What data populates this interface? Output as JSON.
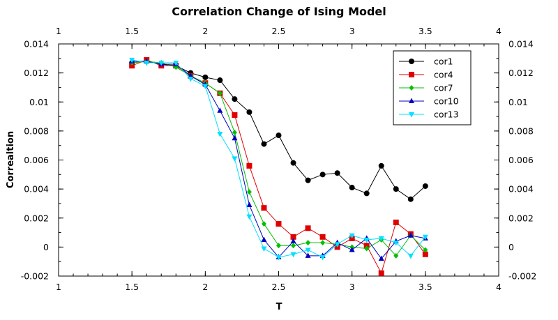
{
  "chart_data": {
    "type": "line",
    "title": "Correlation Change of Ising Model",
    "xlabel": "T",
    "ylabel": "Correaltion",
    "xlim": [
      1,
      4
    ],
    "ylim": [
      -0.002,
      0.014
    ],
    "x_ticks": [
      "1",
      "1.5",
      "2",
      "2.5",
      "3",
      "3.5",
      "4"
    ],
    "x_tick_values": [
      1,
      1.5,
      2,
      2.5,
      3,
      3.5,
      4
    ],
    "y_ticks": [
      "-0.002",
      "0",
      "0.002",
      "0.004",
      "0.006",
      "0.008",
      "0.01",
      "0.012",
      "0.014"
    ],
    "y_tick_values": [
      -0.002,
      0,
      0.002,
      0.004,
      0.006,
      0.008,
      0.01,
      0.012,
      0.014
    ],
    "grid": false,
    "legend_position": "top-right",
    "x": [
      1.5,
      1.6,
      1.7,
      1.8,
      1.9,
      2.0,
      2.1,
      2.2,
      2.3,
      2.4,
      2.5,
      2.6,
      2.7,
      2.8,
      2.9,
      3.0,
      3.1,
      3.2,
      3.3,
      3.4,
      3.5
    ],
    "series": [
      {
        "name": "cor1",
        "color": "#000000",
        "marker": "circle",
        "values": [
          0.0127,
          0.0128,
          0.0126,
          0.0125,
          0.012,
          0.0117,
          0.0115,
          0.0102,
          0.0093,
          0.0071,
          0.0077,
          0.0058,
          0.0046,
          0.005,
          0.0051,
          0.0041,
          0.0037,
          0.0056,
          0.004,
          0.0033,
          0.0042
        ]
      },
      {
        "name": "cor4",
        "color": "#e00000",
        "marker": "square",
        "values": [
          0.0125,
          0.0129,
          0.0125,
          0.0125,
          0.0118,
          0.0113,
          0.0106,
          0.0091,
          0.0056,
          0.0027,
          0.0016,
          0.0007,
          0.0013,
          0.0007,
          0.0,
          0.0006,
          0.0001,
          -0.0018,
          0.0017,
          0.0009,
          -0.0005
        ]
      },
      {
        "name": "cor7",
        "color": "#00c000",
        "marker": "diamond",
        "values": [
          0.0127,
          0.0128,
          0.0127,
          0.0124,
          0.0118,
          0.0113,
          0.0106,
          0.0079,
          0.0038,
          0.0016,
          0.0001,
          0.0001,
          0.0003,
          0.0003,
          0.0002,
          0.0,
          -0.0001,
          0.0005,
          -0.0006,
          0.0008,
          -0.0002
        ]
      },
      {
        "name": "cor10",
        "color": "#0000c0",
        "marker": "triangle-up",
        "values": [
          0.0128,
          0.0128,
          0.0126,
          0.0126,
          0.0118,
          0.0112,
          0.0094,
          0.0075,
          0.0029,
          0.0005,
          -0.0007,
          0.0004,
          -0.0006,
          -0.0006,
          0.0003,
          -0.0002,
          0.0006,
          -0.0008,
          0.0004,
          0.0008,
          0.0006
        ]
      },
      {
        "name": "cor13",
        "color": "#00e0ff",
        "marker": "triangle-down",
        "values": [
          0.0129,
          0.0127,
          0.0127,
          0.0127,
          0.0116,
          0.0111,
          0.0078,
          0.0061,
          0.0021,
          -0.0001,
          -0.0007,
          -0.0005,
          -0.0002,
          -0.0007,
          0.0002,
          0.0008,
          0.0005,
          0.0006,
          0.0003,
          -0.0006,
          0.0007
        ]
      }
    ]
  }
}
